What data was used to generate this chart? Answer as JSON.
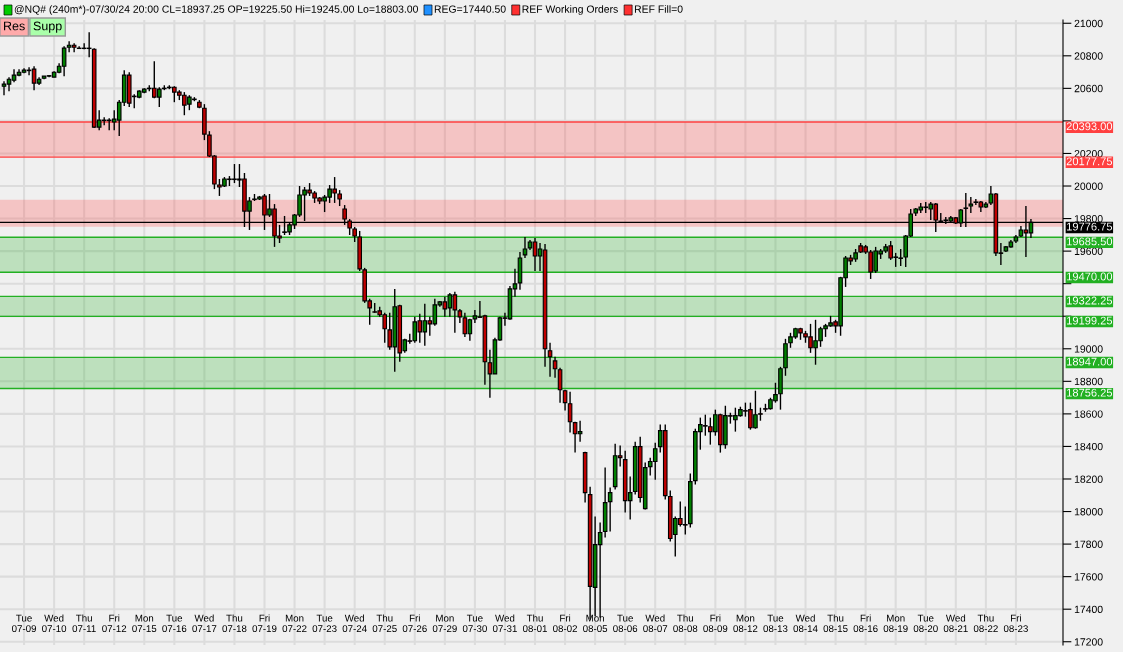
{
  "chart_data": {
    "type": "candlestick",
    "annotations": [
      "@NQ# (240m*)-07/30/24 20:00 CL=18937.25 OP=19225.50 Hi=19245.00 Lo=18803.00",
      "REG=17440.50",
      "REF Working Orders",
      "REF Fill=0",
      "Res",
      "Supp"
    ],
    "categories": [
      null,
      null,
      null,
      null,
      "Tue\n07-09",
      null,
      null,
      null,
      null,
      null,
      "Wed\n07-10",
      null,
      null,
      null,
      null,
      null,
      "Thu\n07-11",
      null,
      null,
      null,
      null,
      null,
      "Fri\n07-12",
      null,
      null,
      null,
      null,
      null,
      "Mon\n07-15",
      null,
      null,
      null,
      null,
      null,
      "Tue\n07-16",
      null,
      null,
      null,
      null,
      null,
      "Wed\n07-17",
      null,
      null,
      null,
      null,
      null,
      "Thu\n07-18",
      null,
      null,
      null,
      null,
      null,
      "Fri\n07-19",
      null,
      null,
      null,
      null,
      null,
      "Mon\n07-22",
      null,
      null,
      null,
      null,
      null,
      "Tue\n07-23",
      null,
      null,
      null,
      null,
      null,
      "Wed\n07-24",
      null,
      null,
      null,
      null,
      null,
      "Thu\n07-25",
      null,
      null,
      null,
      null,
      null,
      "Fri\n07-26",
      null,
      null,
      null,
      null,
      null,
      "Mon\n07-29",
      null,
      null,
      null,
      null,
      null,
      "Tue\n07-30",
      null,
      null,
      null,
      null,
      null,
      "Wed\n07-31",
      null,
      null,
      null,
      null,
      null,
      "Thu\n08-01",
      null,
      null,
      null,
      null,
      null,
      "Fri\n08-02",
      null,
      null,
      null,
      null,
      null,
      "Mon\n08-05",
      null,
      null,
      null,
      null,
      null,
      "Tue\n08-06",
      null,
      null,
      null,
      null,
      null,
      "Wed\n08-07",
      null,
      null,
      null,
      null,
      null,
      "Thu\n08-08",
      null,
      null,
      null,
      null,
      null,
      "Fri\n08-09",
      null,
      null,
      null,
      null,
      null,
      "Mon\n08-12",
      null,
      null,
      null,
      null,
      null,
      "Tue\n08-13",
      null,
      null,
      null,
      null,
      null,
      "Wed\n08-14",
      null,
      null,
      null,
      null,
      null,
      "Thu\n08-15",
      null,
      null,
      null,
      null,
      null,
      "Fri\n08-16",
      null,
      null,
      null,
      null,
      null,
      "Mon\n08-19",
      null,
      null,
      null,
      null,
      null,
      "Tue\n08-20",
      null,
      null,
      null,
      null,
      null,
      "Wed\n08-21",
      null,
      null,
      null,
      null,
      null,
      "Thu\n08-22",
      null,
      null,
      null,
      null,
      null,
      "Fri\n08-23",
      null,
      null,
      null
    ],
    "ohlc": [
      [
        20613,
        20644,
        20558,
        20626
      ],
      [
        20626,
        20669,
        20583,
        20656
      ],
      [
        20650,
        20718,
        20638,
        20681
      ],
      [
        20681,
        20718,
        20675,
        20699
      ],
      [
        20699,
        20724,
        20693,
        20712
      ],
      [
        20712,
        20730,
        20681,
        20709
      ],
      [
        20718,
        20736,
        20589,
        20632
      ],
      [
        20632,
        20669,
        20620,
        20656
      ],
      [
        20662,
        20675,
        20656,
        20675
      ],
      [
        20675,
        20681,
        20669,
        20678
      ],
      [
        20669,
        20705,
        20669,
        20699
      ],
      [
        20699,
        20754,
        20693,
        20736
      ],
      [
        20736,
        20859,
        20675,
        20847
      ],
      [
        20853,
        20889,
        20822,
        20865
      ],
      [
        20865,
        20877,
        20822,
        20853
      ],
      [
        20847,
        20859,
        20843,
        20845
      ],
      [
        20847,
        20877,
        20840,
        20845
      ],
      [
        20847,
        20945,
        20791,
        20845
      ],
      [
        20840,
        20847,
        20356,
        20362
      ],
      [
        20362,
        20466,
        20343,
        20405
      ],
      [
        20405,
        20423,
        20374,
        20402
      ],
      [
        20405,
        20417,
        20343,
        20402
      ],
      [
        20393,
        20466,
        20343,
        20411
      ],
      [
        20405,
        20528,
        20307,
        20515
      ],
      [
        20515,
        20712,
        20491,
        20681
      ],
      [
        20681,
        20699,
        20485,
        20509
      ],
      [
        20552,
        20564,
        20478,
        20549
      ],
      [
        20546,
        20589,
        20540,
        20583
      ],
      [
        20577,
        20601,
        20570,
        20595
      ],
      [
        20601,
        20619,
        20583,
        20598
      ],
      [
        20601,
        20767,
        20540,
        20546
      ],
      [
        20546,
        20607,
        20485,
        20595
      ],
      [
        20601,
        20619,
        20589,
        20598
      ],
      [
        20607,
        20619,
        20595,
        20604
      ],
      [
        20607,
        20613,
        20515,
        20577
      ],
      [
        20577,
        20589,
        20528,
        20558
      ],
      [
        20558,
        20577,
        20435,
        20497
      ],
      [
        20503,
        20558,
        20466,
        20546
      ],
      [
        20534,
        20546,
        20521,
        20531
      ],
      [
        20515,
        20528,
        20478,
        20485
      ],
      [
        20478,
        20503,
        20282,
        20319
      ],
      [
        20313,
        20337,
        20178,
        20184
      ],
      [
        20184,
        20190,
        19981,
        20012
      ],
      [
        20006,
        20043,
        19939,
        19994
      ],
      [
        20000,
        20055,
        19994,
        20043
      ],
      [
        20043,
        20061,
        20000,
        20040
      ],
      [
        20043,
        20135,
        20018,
        20040
      ],
      [
        20043,
        20135,
        19994,
        20037
      ],
      [
        20043,
        20080,
        19748,
        19846
      ],
      [
        19846,
        19932,
        19730,
        19908
      ],
      [
        19920,
        19951,
        19908,
        19917
      ],
      [
        19920,
        19939,
        19914,
        19932
      ],
      [
        19939,
        19951,
        19730,
        19822
      ],
      [
        19822,
        19951,
        19810,
        19859
      ],
      [
        19859,
        19889,
        19626,
        19693
      ],
      [
        19693,
        19761,
        19650,
        19681
      ],
      [
        19718,
        19816,
        19699,
        19715
      ],
      [
        19718,
        19773,
        19699,
        19761
      ],
      [
        19761,
        19828,
        19736,
        19822
      ],
      [
        19822,
        20000,
        19810,
        19945
      ],
      [
        19945,
        19994,
        19785,
        19975
      ],
      [
        19975,
        20018,
        19939,
        19957
      ],
      [
        19957,
        19969,
        19896,
        19926
      ],
      [
        19926,
        19932,
        19889,
        19908
      ],
      [
        19908,
        19945,
        19840,
        19932
      ],
      [
        19932,
        20006,
        19896,
        19981
      ],
      [
        19981,
        20055,
        19896,
        19957
      ],
      [
        19951,
        19975,
        19877,
        19920
      ],
      [
        19859,
        19883,
        19761,
        19797
      ],
      [
        19785,
        19797,
        19699,
        19742
      ],
      [
        19736,
        19748,
        19656,
        19693
      ],
      [
        19687,
        19724,
        19478,
        19491
      ],
      [
        19485,
        19497,
        19282,
        19294
      ],
      [
        19294,
        19307,
        19147,
        19251
      ],
      [
        19227,
        19282,
        19221,
        19225
      ],
      [
        19233,
        19258,
        19196,
        19209
      ],
      [
        19209,
        19221,
        19037,
        19123
      ],
      [
        19116,
        19221,
        18994,
        19012
      ],
      [
        19012,
        19368,
        18859,
        19258
      ],
      [
        19264,
        19270,
        18920,
        18975
      ],
      [
        18988,
        19061,
        18975,
        19055
      ],
      [
        19049,
        19092,
        19031,
        19046
      ],
      [
        19049,
        19196,
        19037,
        19165
      ],
      [
        19172,
        19215,
        19037,
        19104
      ],
      [
        19104,
        19276,
        19018,
        19172
      ],
      [
        19172,
        19196,
        19080,
        19153
      ],
      [
        19153,
        19307,
        19141,
        19270
      ],
      [
        19270,
        19294,
        19258,
        19288
      ],
      [
        19288,
        19319,
        19196,
        19245
      ],
      [
        19251,
        19343,
        19196,
        19331
      ],
      [
        19331,
        19350,
        19098,
        19239
      ],
      [
        19233,
        19245,
        19159,
        19196
      ],
      [
        19190,
        19221,
        19073,
        19092
      ],
      [
        19092,
        19184,
        19049,
        19178
      ],
      [
        19184,
        19239,
        19159,
        19202
      ],
      [
        19196,
        19294,
        19190,
        19193
      ],
      [
        19202,
        19209,
        18779,
        18920
      ],
      [
        18914,
        18994,
        18699,
        18846
      ],
      [
        18846,
        19067,
        18846,
        19055
      ],
      [
        19055,
        19196,
        19049,
        19190
      ],
      [
        19190,
        19221,
        19141,
        19187
      ],
      [
        19184,
        19386,
        19178,
        19368
      ],
      [
        19368,
        19491,
        19319,
        19399
      ],
      [
        19405,
        19595,
        19362,
        19558
      ],
      [
        19577,
        19687,
        19558,
        19613
      ],
      [
        19620,
        19669,
        19607,
        19656
      ],
      [
        19656,
        19681,
        19478,
        19570
      ],
      [
        19570,
        19650,
        19478,
        19613
      ],
      [
        19607,
        19644,
        18889,
        19000
      ],
      [
        18988,
        19037,
        18828,
        18951
      ],
      [
        18926,
        18951,
        18822,
        18877
      ],
      [
        18871,
        18883,
        18669,
        18748
      ],
      [
        18742,
        18748,
        18620,
        18669
      ],
      [
        18662,
        18736,
        18485,
        18552
      ],
      [
        18546,
        18552,
        18362,
        18478
      ],
      [
        18478,
        18558,
        18429,
        18491
      ],
      [
        18362,
        18368,
        18055,
        18116
      ],
      [
        18104,
        18153,
        17337,
        17540
      ],
      [
        17534,
        17969,
        17356,
        17797
      ],
      [
        17797,
        17932,
        17349,
        17871
      ],
      [
        17877,
        18270,
        17840,
        18055
      ],
      [
        18061,
        18147,
        17877,
        18116
      ],
      [
        18153,
        18417,
        18135,
        18343
      ],
      [
        18343,
        18405,
        18276,
        18331
      ],
      [
        18319,
        18374,
        17994,
        18067
      ],
      [
        18067,
        18215,
        17951,
        18116
      ],
      [
        18123,
        18429,
        18104,
        18399
      ],
      [
        18399,
        18460,
        18055,
        18086
      ],
      [
        18018,
        18301,
        18012,
        18270
      ],
      [
        18276,
        18331,
        18221,
        18307
      ],
      [
        18307,
        18423,
        18196,
        18386
      ],
      [
        18399,
        18534,
        18362,
        18497
      ],
      [
        18497,
        18534,
        18074,
        18098
      ],
      [
        18092,
        18129,
        17816,
        17834
      ],
      [
        17859,
        17969,
        17724,
        17957
      ],
      [
        17957,
        18061,
        17908,
        17920
      ],
      [
        17920,
        18031,
        17859,
        17917
      ],
      [
        17926,
        18233,
        17902,
        18184
      ],
      [
        18190,
        18509,
        18166,
        18491
      ],
      [
        18491,
        18577,
        18380,
        18534
      ],
      [
        18528,
        18595,
        18466,
        18525
      ],
      [
        18521,
        18577,
        18411,
        18491
      ],
      [
        18491,
        18626,
        18466,
        18595
      ],
      [
        18595,
        18601,
        18362,
        18411
      ],
      [
        18411,
        18650,
        18386,
        18589
      ],
      [
        18589,
        18607,
        18540,
        18586
      ],
      [
        18564,
        18638,
        18491,
        18589
      ],
      [
        18589,
        18644,
        18583,
        18626
      ],
      [
        18620,
        18669,
        18583,
        18617
      ],
      [
        18626,
        18669,
        18503,
        18515
      ],
      [
        18515,
        18742,
        18509,
        18595
      ],
      [
        18601,
        18638,
        18558,
        18598
      ],
      [
        18632,
        18662,
        18613,
        18629
      ],
      [
        18632,
        18699,
        18626,
        18687
      ],
      [
        18681,
        18791,
        18669,
        18718
      ],
      [
        18724,
        18889,
        18626,
        18877
      ],
      [
        18883,
        19061,
        18834,
        19031
      ],
      [
        19037,
        19098,
        19006,
        19073
      ],
      [
        19073,
        19129,
        19061,
        19123
      ],
      [
        19123,
        19129,
        19055,
        19098
      ],
      [
        19092,
        19110,
        19037,
        19073
      ],
      [
        19073,
        19153,
        18975,
        19006
      ],
      [
        19006,
        19178,
        18902,
        19049
      ],
      [
        19049,
        19135,
        19012,
        19123
      ],
      [
        19123,
        19153,
        19073,
        19141
      ],
      [
        19141,
        19202,
        19135,
        19159
      ],
      [
        19165,
        19178,
        19098,
        19141
      ],
      [
        19141,
        19442,
        19080,
        19436
      ],
      [
        19436,
        19570,
        19380,
        19558
      ],
      [
        19558,
        19577,
        19515,
        19540
      ],
      [
        19552,
        19613,
        19534,
        19589
      ],
      [
        19632,
        19650,
        19589,
        19595
      ],
      [
        19626,
        19638,
        19583,
        19595
      ],
      [
        19595,
        19607,
        19429,
        19472
      ],
      [
        19478,
        19626,
        19466,
        19601
      ],
      [
        19583,
        19613,
        19552,
        19601
      ],
      [
        19601,
        19644,
        19589,
        19626
      ],
      [
        19632,
        19662,
        19546,
        19558
      ],
      [
        19564,
        19589,
        19503,
        19561
      ],
      [
        19558,
        19613,
        19509,
        19555
      ],
      [
        19564,
        19699,
        19503,
        19693
      ],
      [
        19693,
        19859,
        19687,
        19828
      ],
      [
        19834,
        19865,
        19816,
        19859
      ],
      [
        19853,
        19896,
        19834,
        19871
      ],
      [
        19871,
        19902,
        19834,
        19868
      ],
      [
        19859,
        19902,
        19791,
        19889
      ],
      [
        19889,
        19896,
        19718,
        19791
      ],
      [
        19785,
        19834,
        19773,
        19782
      ],
      [
        19791,
        19810,
        19767,
        19788
      ],
      [
        19785,
        19816,
        19773,
        19804
      ],
      [
        19804,
        19810,
        19767,
        19773
      ],
      [
        19773,
        19859,
        19748,
        19853
      ],
      [
        19865,
        19957,
        19748,
        19862
      ],
      [
        19877,
        19932,
        19834,
        19889
      ],
      [
        19902,
        19920,
        19883,
        19899
      ],
      [
        19902,
        19908,
        19840,
        19871
      ],
      [
        19871,
        19902,
        19865,
        19889
      ],
      [
        19896,
        20000,
        19883,
        19951
      ],
      [
        19951,
        19957,
        19570,
        19589
      ],
      [
        19589,
        19650,
        19515,
        19586
      ],
      [
        19601,
        19632,
        19595,
        19626
      ],
      [
        19626,
        19669,
        19620,
        19656
      ],
      [
        19662,
        19699,
        19650,
        19687
      ],
      [
        19693,
        19754,
        19687,
        19730
      ],
      [
        19730,
        19877,
        19564,
        19712
      ],
      [
        19712,
        19797,
        19681,
        19776.75
      ]
    ],
    "ylim": [
      17180,
      21020
    ],
    "yticks": [
      17200,
      17400,
      17600,
      17800,
      18000,
      18200,
      18400,
      18600,
      18800,
      19000,
      {
        "value": 19200,
        "label": null
      },
      {
        "value": 19400,
        "label": null
      },
      19600,
      19800,
      20000,
      20200,
      {
        "value": 20400,
        "label": null
      },
      20600,
      20800,
      21000
    ],
    "bands": [
      {
        "axis": "y",
        "from": 20177.75,
        "to": 20393.0,
        "color": "#ff4040"
      },
      {
        "axis": "y",
        "from": 19750,
        "to": 19915,
        "color": "#ff4040"
      },
      {
        "axis": "y",
        "from": 19470.0,
        "to": 19685.5,
        "color": "#22b022"
      },
      {
        "axis": "y",
        "from": 19199.25,
        "to": 19322.25,
        "color": "#22b022"
      },
      {
        "axis": "y",
        "from": 18756.25,
        "to": 18947.0,
        "color": "#22b022"
      }
    ],
    "ref_lines": [
      {
        "axis": "y",
        "value": 20393.0,
        "label": "20393.00",
        "color": "#ff4040"
      },
      {
        "axis": "y",
        "value": 20177.75,
        "label": "20177.75",
        "color": "#ff4040"
      },
      {
        "axis": "y",
        "value": 19776.75,
        "label": "19776.75",
        "color": "#000000"
      },
      {
        "axis": "y",
        "value": 19685.5,
        "label": "19685.50",
        "color": "#22b022"
      },
      {
        "axis": "y",
        "value": 19470.0,
        "label": "19470.00",
        "color": "#22b022"
      },
      {
        "axis": "y",
        "value": 19322.25,
        "label": "19322.25",
        "color": "#22b022"
      },
      {
        "axis": "y",
        "value": 19199.25,
        "label": "19199.25",
        "color": "#22b022"
      },
      {
        "axis": "y",
        "value": 18947.0,
        "label": "18947.00",
        "color": "#22b022"
      },
      {
        "axis": "y",
        "value": 18756.25,
        "label": "18756.25",
        "color": "#22b022"
      }
    ],
    "grid": true
  }
}
